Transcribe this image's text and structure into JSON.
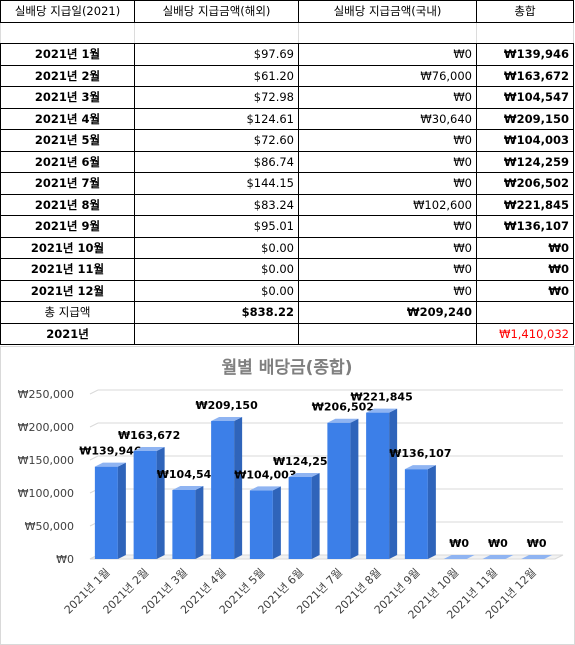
{
  "table": {
    "headers": [
      "실배당 지급일(2021)",
      "실배당 지급금액(해외)",
      "실배당 지급금액(국내)",
      "총합"
    ],
    "rows": [
      {
        "date": "2021년 1월",
        "overseas": "$97.69",
        "domestic": "₩0",
        "total": "₩139,946"
      },
      {
        "date": "2021년 2월",
        "overseas": "$61.20",
        "domestic": "₩76,000",
        "total": "₩163,672"
      },
      {
        "date": "2021년 3월",
        "overseas": "$72.98",
        "domestic": "₩0",
        "total": "₩104,547"
      },
      {
        "date": "2021년 4월",
        "overseas": "$124.61",
        "domestic": "₩30,640",
        "total": "₩209,150"
      },
      {
        "date": "2021년 5월",
        "overseas": "$72.60",
        "domestic": "₩0",
        "total": "₩104,003"
      },
      {
        "date": "2021년 6월",
        "overseas": "$86.74",
        "domestic": "₩0",
        "total": "₩124,259"
      },
      {
        "date": "2021년 7월",
        "overseas": "$144.15",
        "domestic": "₩0",
        "total": "₩206,502"
      },
      {
        "date": "2021년 8월",
        "overseas": "$83.24",
        "domestic": "₩102,600",
        "total": "₩221,845"
      },
      {
        "date": "2021년 9월",
        "overseas": "$95.01",
        "domestic": "₩0",
        "total": "₩136,107"
      },
      {
        "date": "2021년 10월",
        "overseas": "$0.00",
        "domestic": "₩0",
        "total": "₩0"
      },
      {
        "date": "2021년 11월",
        "overseas": "$0.00",
        "domestic": "₩0",
        "total": "₩0"
      },
      {
        "date": "2021년 12월",
        "overseas": "$0.00",
        "domestic": "₩0",
        "total": "₩0"
      }
    ],
    "sum_row": {
      "label": "총 지급액",
      "overseas": "$838.22",
      "domestic": "₩209,240",
      "total": ""
    },
    "year_row": {
      "label": "2021년",
      "overseas": "",
      "domestic": "",
      "total": "₩1,410,032"
    },
    "grand_total_color": "#ff0000"
  },
  "chart_data": {
    "type": "bar",
    "title": "월별 배당금(종합)",
    "categories": [
      "2021년 1월",
      "2021년 2월",
      "2021년 3월",
      "2021년 4월",
      "2021년 5월",
      "2021년 6월",
      "2021년 7월",
      "2021년 8월",
      "2021년 9월",
      "2021년 10월",
      "2021년 11월",
      "2021년 12월"
    ],
    "values": [
      139946,
      163672,
      104547,
      209150,
      104003,
      124259,
      206502,
      221845,
      136107,
      0,
      0,
      0
    ],
    "data_labels": [
      "₩139,946",
      "₩163,672",
      "₩104,547",
      "₩209,150",
      "₩104,003",
      "₩124,259",
      "₩206,502",
      "₩221,845",
      "₩136,107",
      "₩0",
      "₩0",
      "₩0"
    ],
    "yticks": [
      "₩0",
      "₩50,000",
      "₩100,000",
      "₩150,000",
      "₩200,000",
      "₩250,000"
    ],
    "ylim": [
      0,
      250000
    ],
    "grid": true,
    "bar_color": "#3c7fe8",
    "title_color": "#7f7f7f"
  }
}
